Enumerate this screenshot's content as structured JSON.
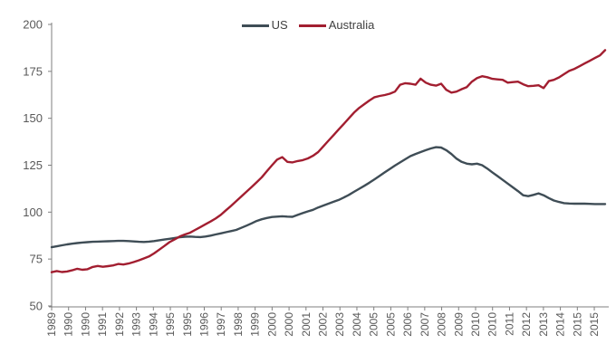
{
  "chart_data": {
    "type": "line",
    "title": "",
    "xlabel": "",
    "ylabel": "",
    "ylim": [
      50,
      200
    ],
    "y_ticks": [
      50,
      75,
      100,
      125,
      150,
      175,
      200
    ],
    "grid": false,
    "legend_position": "top-center",
    "x_frequency": "quarterly",
    "x_start_year": 1989,
    "x_tick_labels": [
      "1989",
      "1990",
      "1990",
      "1991",
      "1992",
      "1993",
      "1994",
      "1995",
      "1995",
      "1996",
      "1997",
      "1998",
      "1999",
      "2000",
      "2000",
      "2001",
      "2002",
      "2003",
      "2004",
      "2005",
      "2005",
      "2006",
      "2007",
      "2008",
      "2009",
      "2010",
      "2010",
      "2011",
      "2012",
      "2013",
      "2014",
      "2015",
      "2015"
    ],
    "series": [
      {
        "name": "US",
        "color": "#3f4d56",
        "values": [
          81.3,
          81.8,
          82.3,
          82.8,
          83.2,
          83.5,
          83.8,
          84.0,
          84.2,
          84.3,
          84.4,
          84.5,
          84.6,
          84.7,
          84.7,
          84.6,
          84.4,
          84.2,
          84.1,
          84.3,
          84.6,
          85.0,
          85.4,
          85.8,
          86.2,
          86.6,
          86.9,
          87.0,
          86.8,
          86.7,
          87.0,
          87.5,
          88.1,
          88.7,
          89.3,
          89.9,
          90.5,
          91.6,
          92.8,
          94.0,
          95.3,
          96.2,
          96.9,
          97.4,
          97.6,
          97.8,
          97.6,
          97.5,
          98.5,
          99.5,
          100.4,
          101.2,
          102.5,
          103.5,
          104.5,
          105.5,
          106.5,
          107.8,
          109.2,
          110.8,
          112.4,
          114.0,
          115.7,
          117.5,
          119.3,
          121.2,
          123.0,
          124.8,
          126.5,
          128.2,
          129.8,
          131.0,
          132.0,
          133.0,
          133.9,
          134.6,
          134.4,
          133.0,
          131.0,
          128.5,
          126.8,
          125.8,
          125.5,
          125.8,
          125.0,
          123.2,
          121.2,
          119.2,
          117.2,
          115.2,
          113.2,
          111.2,
          109.0,
          108.5,
          109.2,
          110.0,
          109.0,
          107.5,
          106.2,
          105.4,
          104.8,
          104.6,
          104.5,
          104.5,
          104.5,
          104.4,
          104.3,
          104.3,
          104.3
        ]
      },
      {
        "name": "Australia",
        "color": "#a21e30",
        "values": [
          68.0,
          68.6,
          68.1,
          68.4,
          69.0,
          69.8,
          69.3,
          69.6,
          70.8,
          71.3,
          70.9,
          71.2,
          71.6,
          72.4,
          72.1,
          72.6,
          73.4,
          74.3,
          75.3,
          76.4,
          78.0,
          80.0,
          82.0,
          84.0,
          85.5,
          87.0,
          88.1,
          89.0,
          90.5,
          92.0,
          93.5,
          95.0,
          96.6,
          98.5,
          101.0,
          103.3,
          105.8,
          108.3,
          110.8,
          113.3,
          115.9,
          118.6,
          121.8,
          125.0,
          128.0,
          129.3,
          126.8,
          126.5,
          127.2,
          127.7,
          128.6,
          130.0,
          132.0,
          135.0,
          138.0,
          141.0,
          144.0,
          147.0,
          150.0,
          153.0,
          155.5,
          157.5,
          159.5,
          161.2,
          161.9,
          162.4,
          163.1,
          164.2,
          167.9,
          168.7,
          168.4,
          167.9,
          171.1,
          169.0,
          167.9,
          167.4,
          168.4,
          165.2,
          163.7,
          164.2,
          165.5,
          166.6,
          169.5,
          171.4,
          172.4,
          171.9,
          171.0,
          170.7,
          170.5,
          169.0,
          169.3,
          169.5,
          168.1,
          167.1,
          167.3,
          167.6,
          166.1,
          169.8,
          170.5,
          171.8,
          173.5,
          175.3,
          176.3,
          177.7,
          179.2,
          180.6,
          182.1,
          183.5,
          186.3
        ]
      }
    ],
    "axis_color": "#7f7f7f",
    "tick_text_color": "#595959"
  }
}
